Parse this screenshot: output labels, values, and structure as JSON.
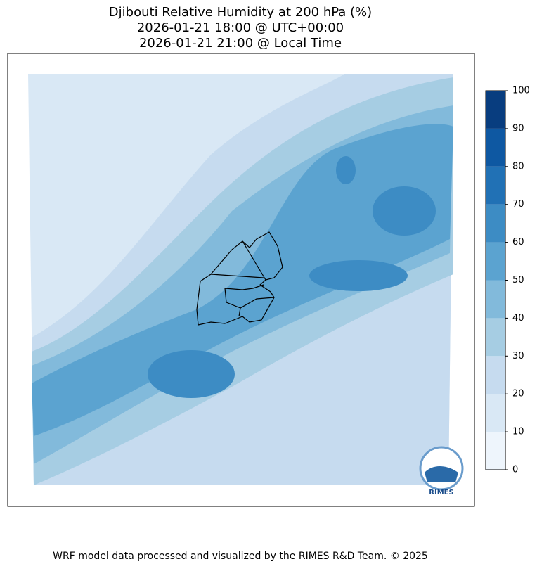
{
  "title": [
    "Djibouti Relative Humidity at 200 hPa (%)",
    "2026-01-21 18:00 @ UTC+00:00",
    "2026-01-21 21:00 @ Local Time"
  ],
  "colorbar": {
    "lim": [
      0,
      100
    ],
    "ticks": [
      0,
      10,
      20,
      30,
      40,
      50,
      60,
      70,
      80,
      90,
      100
    ],
    "colors": [
      "#eef5fc",
      "#d9e8f5",
      "#c6dbef",
      "#a6cde3",
      "#82badb",
      "#5ba3d0",
      "#3d8cc4",
      "#2171b5",
      "#0e58a2",
      "#083d7f"
    ]
  },
  "logo": "RIMES",
  "footer": "WRF model data processed and visualized by the RIMES R&D Team. © 2025"
}
